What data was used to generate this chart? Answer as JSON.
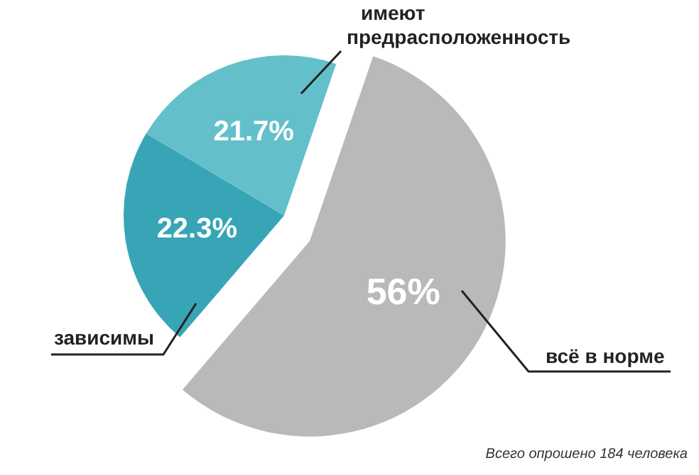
{
  "chart_data": {
    "type": "pie",
    "categories": [
      "всё в норме",
      "зависимы",
      "имеют предрасположенность"
    ],
    "values": [
      56,
      22.3,
      21.7
    ],
    "colors": [
      "#b9b9b9",
      "#37a5b6",
      "#63c0cb"
    ],
    "value_labels": [
      "56%",
      "22.3%",
      "21.7%"
    ],
    "annotations": [
      "Всего опрошено 184 человека"
    ]
  }
}
